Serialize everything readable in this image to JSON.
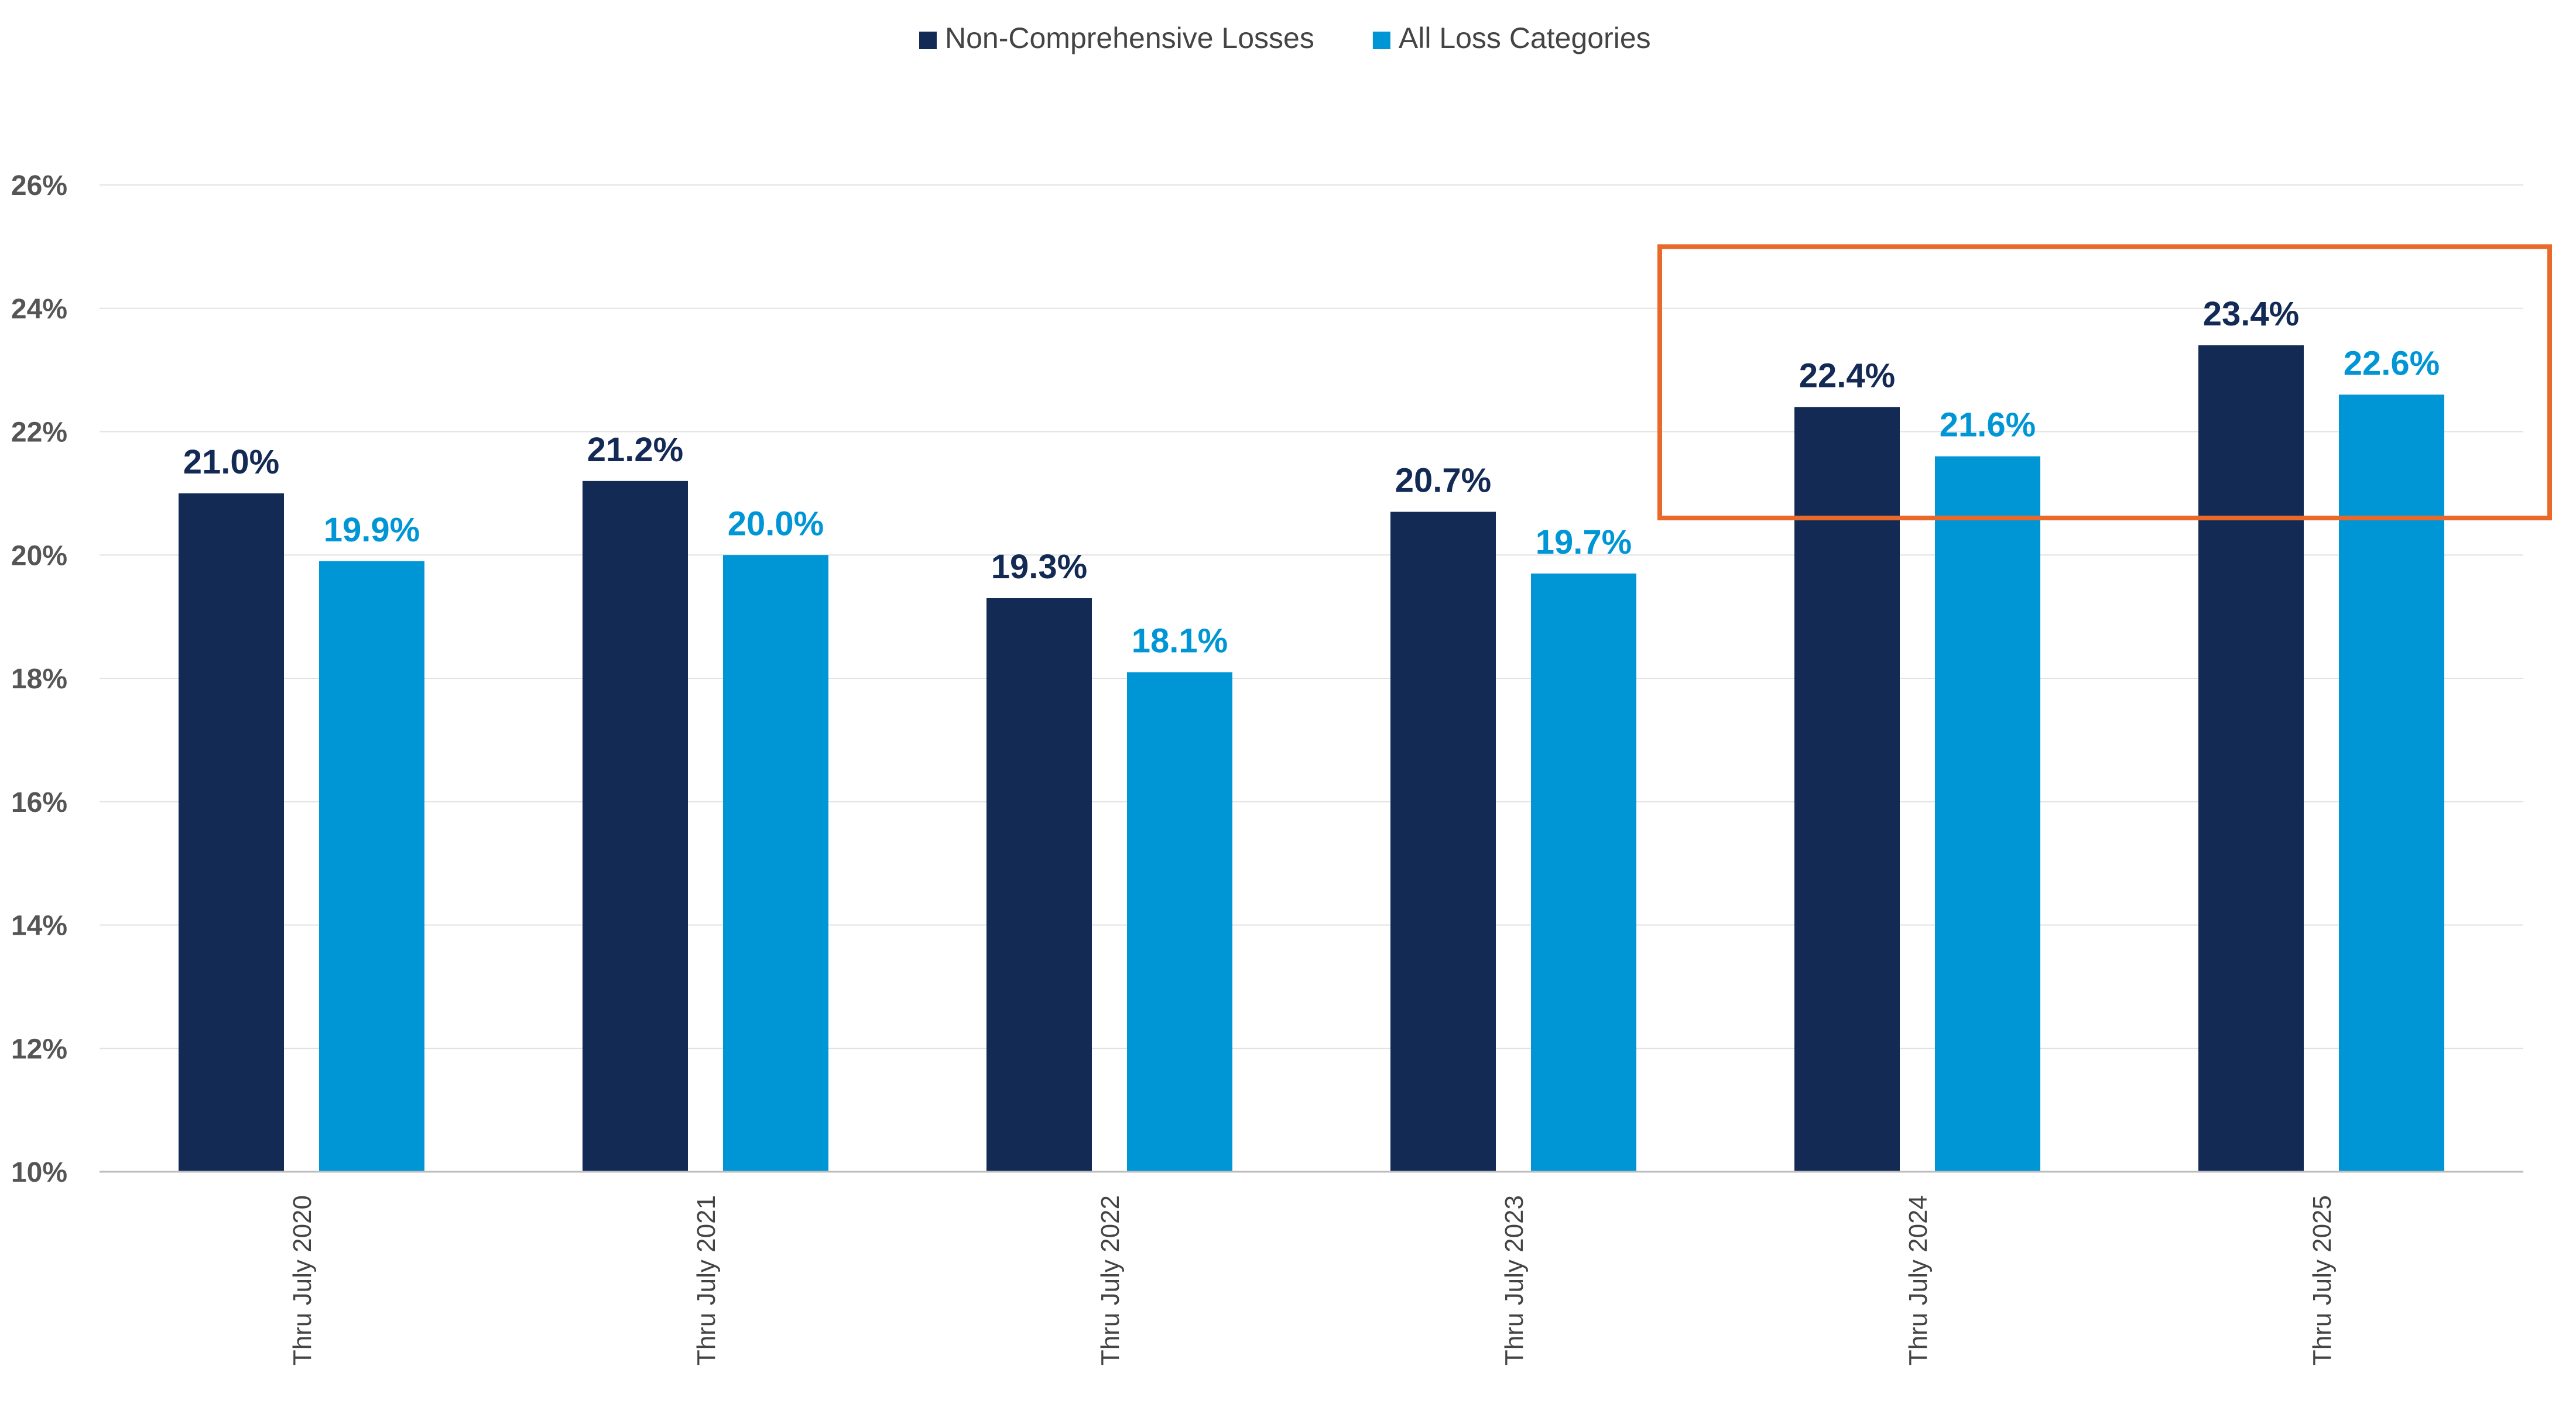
{
  "chart_data": {
    "type": "bar",
    "categories": [
      "Thru July 2020",
      "Thru July 2021",
      "Thru July 2022",
      "Thru July 2023",
      "Thru July 2024",
      "Thru July 2025"
    ],
    "series": [
      {
        "name": "Non-Comprehensive Losses",
        "color": "#132a55",
        "values": [
          21.0,
          21.2,
          19.3,
          20.7,
          22.4,
          23.4
        ],
        "labels": [
          "21.0%",
          "21.2%",
          "19.3%",
          "20.7%",
          "22.4%",
          "23.4%"
        ]
      },
      {
        "name": "All Loss Categories",
        "color": "#0096d6",
        "values": [
          19.9,
          20.0,
          18.1,
          19.7,
          21.6,
          22.6
        ],
        "labels": [
          "19.9%",
          "20.0%",
          "18.1%",
          "19.7%",
          "21.6%",
          "22.6%"
        ]
      }
    ],
    "y_ticks": [
      "10%",
      "12%",
      "14%",
      "16%",
      "18%",
      "20%",
      "22%",
      "24%",
      "26%"
    ],
    "ylim": [
      10,
      26
    ],
    "grid": true,
    "legend_position": "top-center",
    "highlight": {
      "categories": [
        "Thru July 2024",
        "Thru July 2025"
      ],
      "range": [
        20.6,
        25.0
      ],
      "color": "#e8692a"
    }
  }
}
